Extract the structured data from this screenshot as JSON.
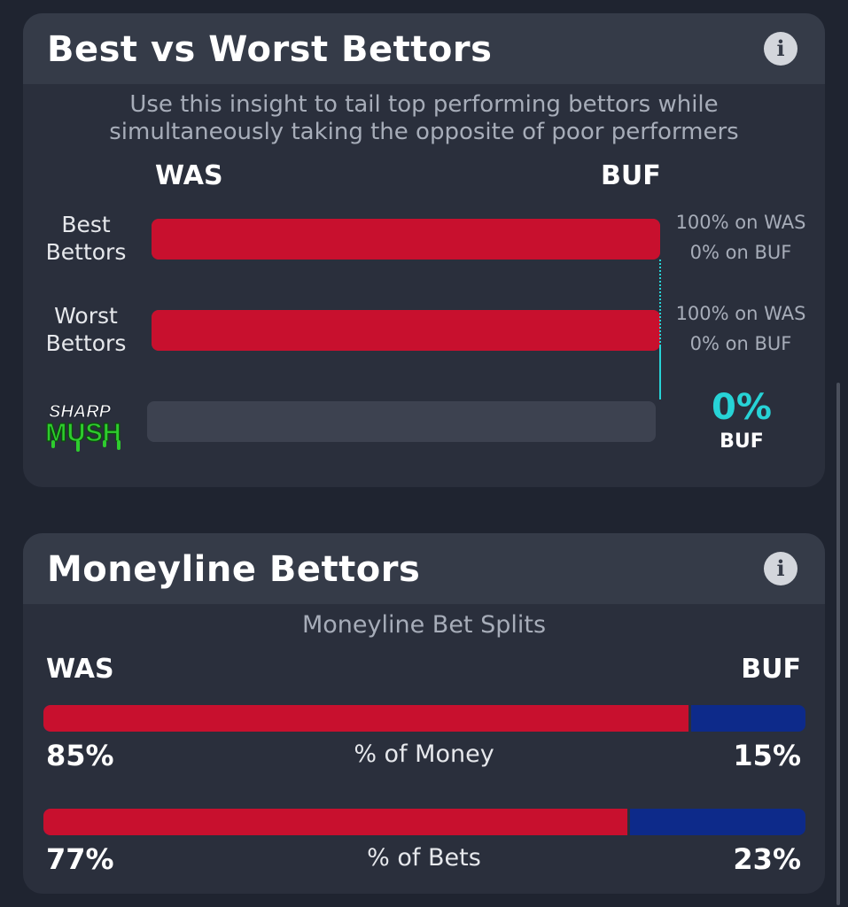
{
  "best_worst": {
    "title": "Best vs Worst Bettors",
    "info_icon": "i",
    "subtitle_line1": "Use this insight to tail top performing bettors while",
    "subtitle_line2": "simultaneously taking the opposite of poor performers",
    "team_left": "WAS",
    "team_right": "BUF",
    "rows": [
      {
        "label_line1": "Best",
        "label_line2": "Bettors",
        "was_share": 1.0,
        "note_line1": "100% on WAS",
        "note_line2": "0% on BUF"
      },
      {
        "label_line1": "Worst",
        "label_line2": "Bettors",
        "was_share": 1.0,
        "note_line1": "100% on WAS",
        "note_line2": "0% on BUF"
      }
    ],
    "sharp": {
      "logo_line1": "SHARP",
      "logo_line2": "MUSH",
      "pct": "0%",
      "team": "BUF",
      "fill": 0.0,
      "accent": "#27d3d6"
    }
  },
  "moneyline": {
    "title": "Moneyline Bettors",
    "info_icon": "i",
    "subtitle": "Moneyline Bet Splits",
    "team_left": "WAS",
    "team_right": "BUF",
    "metrics": [
      {
        "label": "% of Money",
        "left_pct": "85%",
        "right_pct": "15%",
        "left_share": 0.85
      },
      {
        "label": "% of Bets",
        "left_pct": "77%",
        "right_pct": "23%",
        "left_share": 0.77
      }
    ]
  },
  "colors": {
    "was": "#c8102e",
    "buf": "#0d2a8a",
    "card": "#2a2f3c",
    "header": "#353b48",
    "sharp_accent": "#27d3d6",
    "logo_green": "#2ecc2e"
  }
}
